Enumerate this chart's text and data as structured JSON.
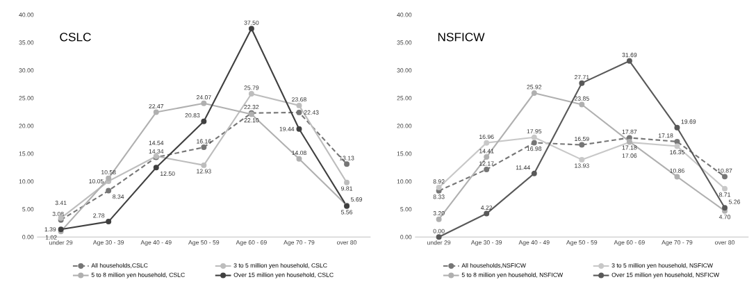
{
  "chart_data": [
    {
      "type": "line",
      "title": "CSLC",
      "categories": [
        "under 29",
        "Age 30 - 39",
        "Age 40 - 49",
        "Age 50 - 59",
        "Age 60 - 69",
        "Age 70 - 79",
        "over 80"
      ],
      "ylim": [
        0,
        40
      ],
      "yticks": [
        {
          "value": 0,
          "label": "0.00"
        },
        {
          "value": 5,
          "label": "5.00"
        },
        {
          "value": 10,
          "label": "10.00"
        },
        {
          "value": 15,
          "label": "15.00"
        },
        {
          "value": 20,
          "label": "20.00"
        },
        {
          "value": 25,
          "label": "25.00"
        },
        {
          "value": 30,
          "label": "30.00"
        },
        {
          "value": 35,
          "label": "35.00"
        },
        {
          "value": 40,
          "label": "40.00"
        }
      ],
      "grid": false,
      "legend": "bottom",
      "marker": "circle",
      "series": [
        {
          "name": "All households,CSLC",
          "color": "#767676",
          "line_style": "dashed",
          "values": [
            3.08,
            8.34,
            14.34,
            16.16,
            22.32,
            22.43,
            13.13
          ],
          "value_labels": [
            "3.08",
            "8.34",
            "14.34",
            "16.16",
            "22.32",
            "22.43",
            "13.13"
          ]
        },
        {
          "name": "3 to 5 million yen household, CSLC",
          "color": "#bdbdbd",
          "line_style": "solid",
          "values": [
            3.41,
            10.05,
            14.54,
            12.93,
            25.79,
            23.68,
            9.81
          ],
          "value_labels": [
            "3.41",
            "10.05",
            "14.54",
            "12.93",
            "25.79",
            "23.68",
            "9.81"
          ]
        },
        {
          "name": "5 to 8 million yen household, CSLC",
          "color": "#b0b0b0",
          "line_style": "solid",
          "values": [
            1.02,
            10.58,
            22.47,
            24.07,
            22.1,
            14.08,
            5.69
          ],
          "value_labels": [
            "1.02",
            "10.58",
            "22.47",
            "24.07",
            "22.10",
            "14.08",
            "5.69"
          ]
        },
        {
          "name": "Over 15 million yen household, CSLC",
          "color": "#404040",
          "line_style": "solid",
          "values": [
            1.39,
            2.78,
            12.5,
            20.83,
            37.5,
            19.44,
            5.56
          ],
          "value_labels": [
            "1.39",
            "2.78",
            "12.50",
            "20.83",
            "37.50",
            "19.44",
            "5.56"
          ]
        }
      ]
    },
    {
      "type": "line",
      "title": "NSFICW",
      "categories": [
        "under 29",
        "Age 30 - 39",
        "Age 40 - 49",
        "Age 50 - 59",
        "Age 60 - 69",
        "Age 70 - 79",
        "over 80"
      ],
      "ylim": [
        0,
        40
      ],
      "yticks": [
        {
          "value": 0,
          "label": "0.00"
        },
        {
          "value": 5,
          "label": "5.00"
        },
        {
          "value": 10,
          "label": "10.00"
        },
        {
          "value": 15,
          "label": "15.00"
        },
        {
          "value": 20,
          "label": "20.00"
        },
        {
          "value": 25,
          "label": "25.00"
        },
        {
          "value": 30,
          "label": "30.00"
        },
        {
          "value": 35,
          "label": "35.00"
        },
        {
          "value": 40,
          "label": "40.00"
        }
      ],
      "grid": false,
      "legend": "bottom",
      "marker": "circle",
      "series": [
        {
          "name": "All households,NSFICW",
          "color": "#767676",
          "line_style": "dashed",
          "values": [
            8.33,
            12.17,
            16.98,
            16.59,
            17.87,
            17.18,
            10.87
          ],
          "value_labels": [
            "8.33",
            "12.17",
            "16.98",
            "16.59",
            "17.87",
            "17.18",
            "10.87"
          ]
        },
        {
          "name": "3 to 5 million yen household, NSFICW",
          "color": "#c8c8c8",
          "line_style": "solid",
          "values": [
            8.92,
            16.96,
            17.95,
            13.93,
            17.06,
            16.35,
            8.71
          ],
          "value_labels": [
            "8.92",
            "16.96",
            "17.95",
            "13.93",
            "17.06",
            "16.35",
            "8.71"
          ]
        },
        {
          "name": "5 to 8 million yen household, NSFICW",
          "color": "#b0b0b0",
          "line_style": "solid",
          "values": [
            3.2,
            14.41,
            25.92,
            23.85,
            17.18,
            10.86,
            4.7
          ],
          "value_labels": [
            "3.20",
            "14.41",
            "25.92",
            "23.85",
            "17.18",
            "10.86",
            "4.70"
          ]
        },
        {
          "name": "Over 15 million yen household, NSFICW",
          "color": "#595959",
          "line_style": "solid",
          "values": [
            0.0,
            4.22,
            11.44,
            27.71,
            31.69,
            19.69,
            5.26
          ],
          "value_labels": [
            "0.00",
            "4.22",
            "11.44",
            "27.71",
            "31.69",
            "19.69",
            "5.26"
          ]
        }
      ]
    }
  ]
}
